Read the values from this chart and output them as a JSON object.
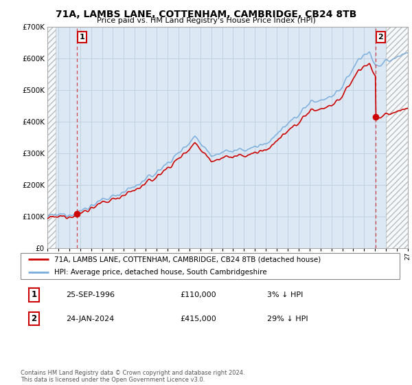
{
  "title": "71A, LAMBS LANE, COTTENHAM, CAMBRIDGE, CB24 8TB",
  "subtitle": "Price paid vs. HM Land Registry's House Price Index (HPI)",
  "legend_line1": "71A, LAMBS LANE, COTTENHAM, CAMBRIDGE, CB24 8TB (detached house)",
  "legend_line2": "HPI: Average price, detached house, South Cambridgeshire",
  "point1_date": "25-SEP-1996",
  "point1_price": "£110,000",
  "point1_hpi": "3% ↓ HPI",
  "point1_year": 1996.73,
  "point1_value": 110000,
  "point2_date": "24-JAN-2024",
  "point2_price": "£415,000",
  "point2_hpi": "29% ↓ HPI",
  "point2_year": 2024.07,
  "point2_value": 415000,
  "red_color": "#cc0000",
  "blue_color": "#7aacdb",
  "plot_bg": "#dce9f5",
  "background_color": "#ffffff",
  "grid_color": "#c0d0e0",
  "footnote": "Contains HM Land Registry data © Crown copyright and database right 2024.\nThis data is licensed under the Open Government Licence v3.0.",
  "xmin": 1994,
  "xmax": 2027,
  "ymin": 0,
  "ymax": 700000
}
